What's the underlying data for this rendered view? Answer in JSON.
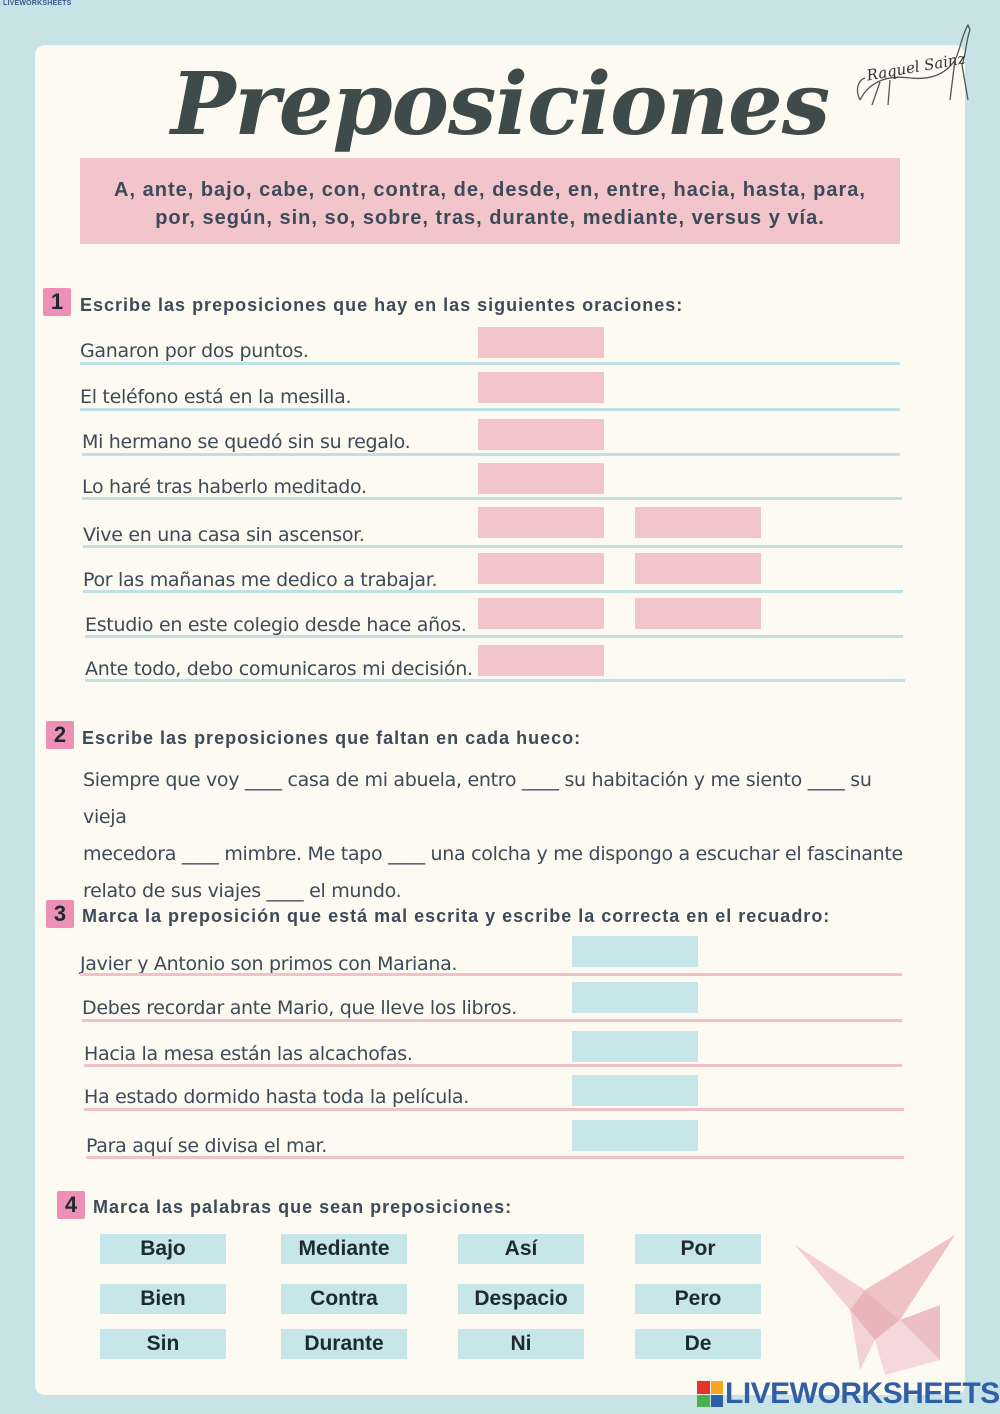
{
  "corner_tag": "LIVEWORKSHEETS",
  "title": "Preposiciones",
  "signature": "Raquel Sainz",
  "preposition_list": {
    "line1": "A, ante, bajo, cabe, con, contra, de, desde, en, entre, hacia, hasta, para,",
    "line2": "por, según, sin, so, sobre, tras, durante, mediante, versus y vía."
  },
  "exercise1": {
    "number": "1",
    "heading": "Escribe las preposiciones que hay en las siguientes oraciones:",
    "sentences": [
      "Ganaron por dos puntos.",
      "El teléfono está en la mesilla.",
      "Mi hermano se quedó sin su regalo.",
      "Lo haré tras haberlo meditado.",
      "Vive en una casa sin ascensor.",
      "Por las mañanas me dedico a trabajar.",
      "Estudio en este colegio desde hace años.",
      "Ante todo, debo comunicaros mi decisión."
    ]
  },
  "exercise2": {
    "number": "2",
    "heading": "Escribe las preposiciones que faltan en cada hueco:",
    "line1": "Siempre que voy ____ casa de mi abuela, entro ____ su habitación y me siento ____ su vieja",
    "line2": "mecedora ____ mimbre. Me tapo ____ una colcha y me dispongo a escuchar el fascinante",
    "line3": "relato de sus viajes ____ el mundo."
  },
  "exercise3": {
    "number": "3",
    "heading": "Marca la preposición que está mal escrita y escribe la correcta en el recuadro:",
    "sentences": [
      "Javier y Antonio son primos con Mariana.",
      "Debes recordar ante Mario, que lleve los libros.",
      "Hacia la mesa están las alcachofas.",
      "Ha estado dormido hasta toda la película.",
      "Para aquí se divisa el mar."
    ]
  },
  "exercise4": {
    "number": "4",
    "heading": "Marca las palabras que sean preposiciones:",
    "words": [
      "Bajo",
      "Mediante",
      "Así",
      "Por",
      "Bien",
      "Contra",
      "Despacio",
      "Pero",
      "Sin",
      "Durante",
      "Ni",
      "De"
    ]
  },
  "footer_logo": "LIVEWORKSHEETS",
  "colors": {
    "background": "#c7e3e6",
    "paper": "#fdfaf1",
    "pink": "#f2c5cb",
    "blue": "#c6e6ea",
    "number_badge": "#ee8fb5",
    "text": "#3d4a5a",
    "logo_blue": "#2f5fa6"
  }
}
